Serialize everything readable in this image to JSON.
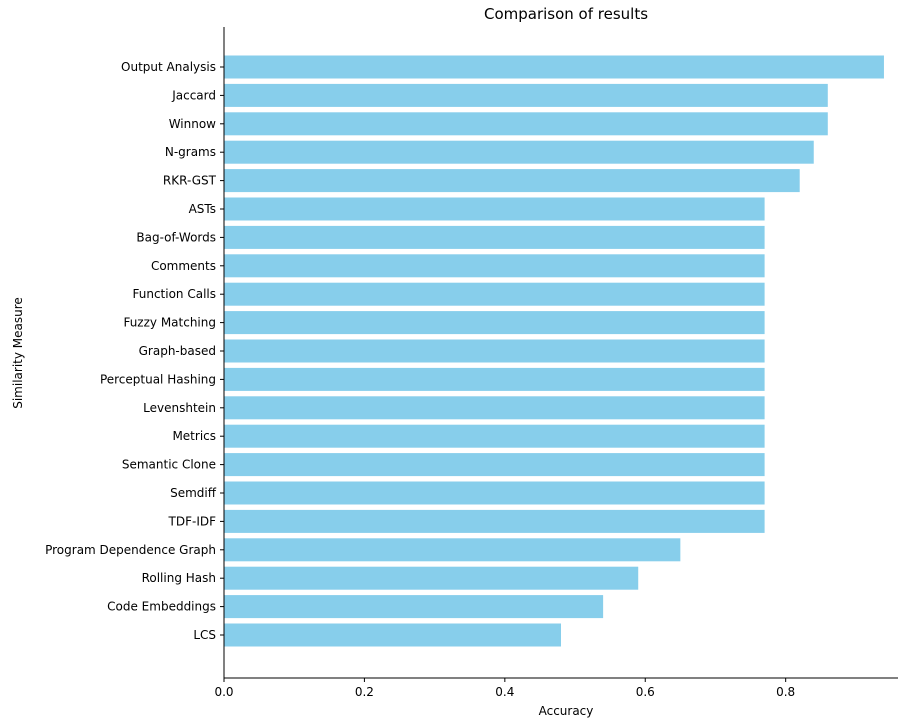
{
  "chart_data": {
    "type": "bar",
    "orientation": "horizontal",
    "title": "Comparison of results",
    "xlabel": "Accuracy",
    "ylabel": "Similarity Measure",
    "xlim": [
      0,
      0.96
    ],
    "xticks": [
      "0.0",
      "0.2",
      "0.4",
      "0.6",
      "0.8"
    ],
    "xtick_values": [
      0,
      0.2,
      0.4,
      0.6,
      0.8
    ],
    "grid": false,
    "bar_color": "#87ceeb",
    "categories": [
      "Output Analysis",
      "Jaccard",
      "Winnow",
      "N-grams",
      "RKR-GST",
      "ASTs",
      "Bag-of-Words",
      "Comments",
      "Function Calls",
      "Fuzzy Matching",
      "Graph-based",
      "Perceptual Hashing",
      "Levenshtein",
      "Metrics",
      "Semantic Clone",
      "Semdiff",
      "TDF-IDF",
      "Program Dependence Graph",
      "Rolling Hash",
      "Code Embeddings",
      "LCS"
    ],
    "values": [
      0.94,
      0.86,
      0.86,
      0.84,
      0.82,
      0.77,
      0.77,
      0.77,
      0.77,
      0.77,
      0.77,
      0.77,
      0.77,
      0.77,
      0.77,
      0.77,
      0.77,
      0.65,
      0.59,
      0.54,
      0.48
    ]
  }
}
